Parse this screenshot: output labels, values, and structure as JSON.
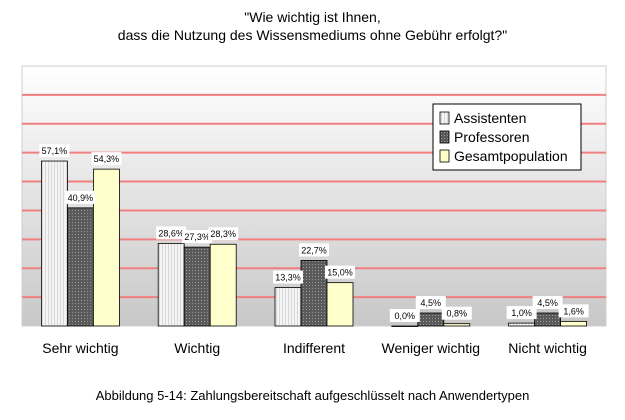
{
  "chart_data": {
    "type": "bar",
    "title": [
      "\"Wie wichtig ist Ihnen,",
      "dass die Nutzung des Wissensmediums ohne Gebühr erfolgt?\""
    ],
    "categories": [
      "Sehr wichtig",
      "Wichtig",
      "Indifferent",
      "Weniger wichtig",
      "Nicht wichtig"
    ],
    "series": [
      {
        "name": "Assistenten",
        "values": [
          57.1,
          28.6,
          13.3,
          0.0,
          1.0
        ],
        "labels": [
          "57,1%",
          "28,6%",
          "13,3%",
          "0,0%",
          "1,0%"
        ],
        "color": "#efefef"
      },
      {
        "name": "Professoren",
        "values": [
          40.9,
          27.3,
          22.7,
          4.5,
          4.5
        ],
        "labels": [
          "40,9%",
          "27,3%",
          "22,7%",
          "4,5%",
          "4,5%"
        ],
        "color": "#505050"
      },
      {
        "name": "Gesamtpopulation",
        "values": [
          54.3,
          28.3,
          15.0,
          0.8,
          1.6
        ],
        "labels": [
          "54,3%",
          "28,3%",
          "15,0%",
          "0,8%",
          "1,6%"
        ],
        "color": "#ffffcc"
      }
    ],
    "ylim": [
      0,
      90
    ],
    "grid": true,
    "gridline_color": "#f08080",
    "legend_position": "top-right"
  },
  "caption": "Abbildung 5-14: Zahlungsbereitschaft aufgeschlüsselt nach Anwendertypen"
}
